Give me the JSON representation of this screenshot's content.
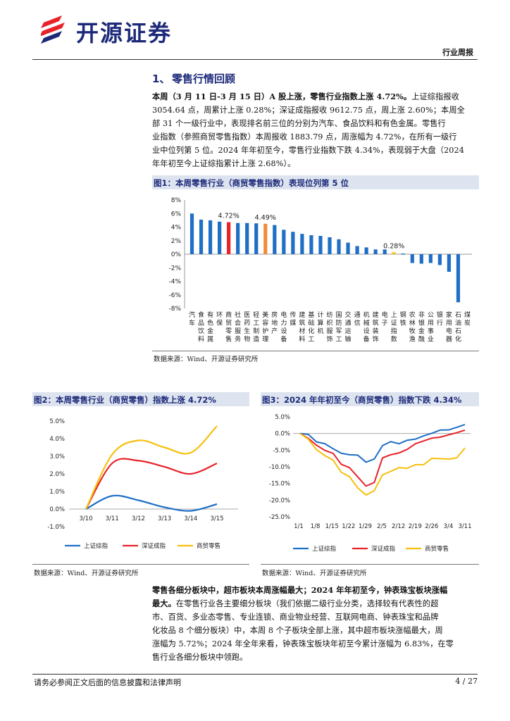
{
  "header": {
    "brand": "开源证券",
    "doc_type": "行业周报"
  },
  "section": {
    "number": "1、",
    "title": "零售行情回顾"
  },
  "para1": {
    "lead": "本周（3 月 11 日-3 月 15 日）A 股上涨，零售行业指数上涨 4.72%。",
    "lines": [
      "上证综指报收",
      "3054.64 点，周累计上涨 0.28%；深证成指报收 9612.75 点，周上涨 2.60%；本周全",
      "部 31 个一级行业中，表现排名前三位的分别为汽车、食品饮料和有色金属。零售行",
      "业指数（参照商贸零售指数）本周报收 1883.79 点，周涨幅为 4.72%，在所有一级行",
      "业中位列第 5 位。2024 年年初至今，零售行业指数下跌 4.34%，表现弱于大盘（2024",
      "年年初至今上证综指累计上涨 2.68%）。"
    ]
  },
  "fig1": {
    "title": "图1：本周零售行业（商贸零售指数）表现位列第 5 位",
    "source": "数据来源：Wind、开源证券研究所"
  },
  "fig2": {
    "title": "图2：本周零售行业（商贸零售）指数上涨 4.72%",
    "source": "数据来源：Wind、开源证券研究所"
  },
  "fig3": {
    "title": "图3：2024 年年初至今（商贸零售）指数下跌 4.34%",
    "source": "数据来源：Wind、开源证券研究所"
  },
  "para2": {
    "lead_lines": [
      "零售各细分板块中，超市板块本周涨幅最大；2024 年年初至今，钟表珠宝板块涨幅",
      "最大。"
    ],
    "first_line_rest": "在零售行业各主要细分板块（我们依据二级行业分类，选择较有代表性的超",
    "lines": [
      "市、百货、多业态零售、专业连锁、商业物业经营、互联网电商、钟表珠宝和品牌",
      "化妆品 8 个细分板块）中，本周 8 个子板块全部上涨，其中超市板块涨幅最大，周",
      "涨幅为 5.72%；2024 年全年来看，钟表珠宝板块年初至今累计涨幅为 6.83%，在零",
      "售行业各细分板块中领跑。"
    ]
  },
  "footer": {
    "disclaimer": "请务必参阅正文后面的信息披露和法律声明",
    "page": "4 / 27"
  },
  "colors": {
    "blue": "#1f6fc6",
    "red": "#e8222a",
    "orange": "#f28a3c",
    "yellow": "#f6bf0c",
    "navy": "#1d2a7a"
  },
  "chart_data": [
    {
      "type": "bar",
      "title": "图1：本周零售行业（商贸零售指数）表现位列第 5 位",
      "categories": [
        "汽车",
        "食品饮料",
        "有色金属",
        "环保",
        "商贸零售",
        "社会服务",
        "医药生物",
        "轻工制造",
        "美容护理",
        "房地产",
        "电力设备",
        "传媒",
        "建筑材料",
        "基础化工",
        "计算机",
        "纺织服饰",
        "国防军工",
        "交通运输",
        "通信",
        "机械设备",
        "建筑装饰",
        "电子",
        "上证指数",
        "钢铁",
        "农林牧渔",
        "非银金融",
        "公用事业",
        "银行",
        "家用电器",
        "石油石化",
        "煤炭"
      ],
      "values": [
        6.0,
        5.1,
        5.0,
        4.8,
        4.72,
        4.6,
        4.6,
        4.55,
        4.49,
        4.3,
        3.6,
        3.3,
        3.0,
        2.8,
        2.7,
        2.5,
        2.2,
        1.7,
        1.2,
        1.0,
        0.7,
        0.7,
        0.28,
        0.1,
        -1.3,
        -1.4,
        -1.3,
        -1.6,
        -2.6,
        -7.1,
        null
      ],
      "labels": {
        "商贸零售": "4.72%",
        "美容护理": "4.49%",
        "上证指数": "0.28%"
      },
      "ylim": [
        -8,
        8
      ],
      "yticks": [
        "8%",
        "6%",
        "4%",
        "2%",
        "0%",
        "-2%",
        "-4%",
        "-6%",
        "-8%"
      ]
    },
    {
      "type": "line",
      "title": "图2：本周零售行业（商贸零售）指数上涨 4.72%",
      "x": [
        "3/10",
        "3/11",
        "3/12",
        "3/13",
        "3/14",
        "3/15"
      ],
      "series": [
        {
          "name": "上证综指",
          "values": [
            0.0,
            0.75,
            0.5,
            0.1,
            -0.1,
            0.28
          ]
        },
        {
          "name": "深证成指",
          "values": [
            0.0,
            2.6,
            2.75,
            2.4,
            2.0,
            2.6
          ]
        },
        {
          "name": "商贸零售",
          "values": [
            0.0,
            3.1,
            3.9,
            3.5,
            3.2,
            4.72
          ]
        }
      ],
      "ylim": [
        -1,
        5
      ],
      "yticks": [
        "5.0%",
        "4.0%",
        "3.0%",
        "2.0%",
        "1.0%",
        "0.0%",
        "-1.0%"
      ]
    },
    {
      "type": "line",
      "title": "图3：2024 年年初至今（商贸零售）指数下跌 4.34%",
      "x_ticks": [
        "1/1",
        "1/8",
        "1/15",
        "1/22",
        "1/29",
        "2/5",
        "2/12",
        "2/19",
        "2/26",
        "3/4",
        "3/11"
      ],
      "series": [
        {
          "name": "上证综指",
          "values": [
            0,
            -0.3,
            -2.5,
            -3.1,
            -4.5,
            -6.0,
            -6.3,
            -6.6,
            -8.5,
            -7.8,
            -3.5,
            -2.6,
            -2.9,
            -2.2,
            -1.5,
            -0.9,
            0.3,
            0.8,
            1.3,
            1.6,
            2.68
          ]
        },
        {
          "name": "深证成指",
          "values": [
            0,
            -1.2,
            -3.8,
            -4.8,
            -6.2,
            -9.0,
            -10.5,
            -12.8,
            -16.0,
            -14.5,
            -7.5,
            -6.2,
            -6.0,
            -4.6,
            -3.2,
            -2.1,
            -1.5,
            -1.0,
            -0.5,
            0.3,
            1.0
          ]
        },
        {
          "name": "商贸零售",
          "values": [
            0,
            -1.4,
            -5.2,
            -6.3,
            -8.3,
            -11.3,
            -13.3,
            -16.0,
            -18.8,
            -16.8,
            -12.8,
            -11.0,
            -10.6,
            -10.1,
            -9.7,
            -9.0,
            -7.8,
            -7.2,
            -8.0,
            -7.0,
            -4.34
          ]
        }
      ],
      "ylim": [
        -25,
        5
      ],
      "yticks": [
        "5.0%",
        "0.0%",
        "-5.0%",
        "-10.0%",
        "-15.0%",
        "-20.0%",
        "-25.0%"
      ]
    }
  ]
}
